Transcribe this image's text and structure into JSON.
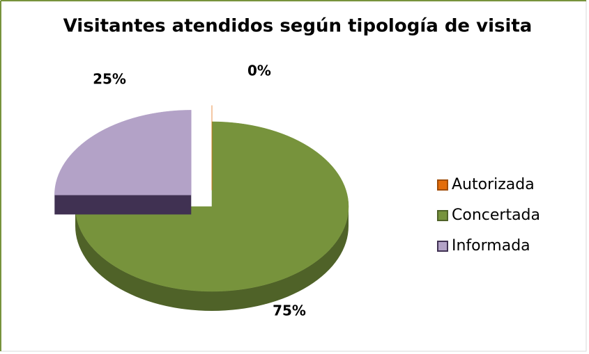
{
  "chart_data": {
    "type": "pie3d",
    "title": "Visitantes atendidos según tipología de visita",
    "categories": [
      "Autorizada",
      "Concertada",
      "Informada"
    ],
    "values": [
      0,
      75,
      25
    ],
    "value_labels": [
      "0%",
      "75%",
      "25%"
    ],
    "colors": [
      "#e36c0a",
      "#77933c",
      "#b3a2c7"
    ],
    "side_colors": [
      "#a04c06",
      "#4f6228",
      "#403152"
    ],
    "exploded": [
      true,
      false,
      true
    ],
    "legend": "right"
  }
}
